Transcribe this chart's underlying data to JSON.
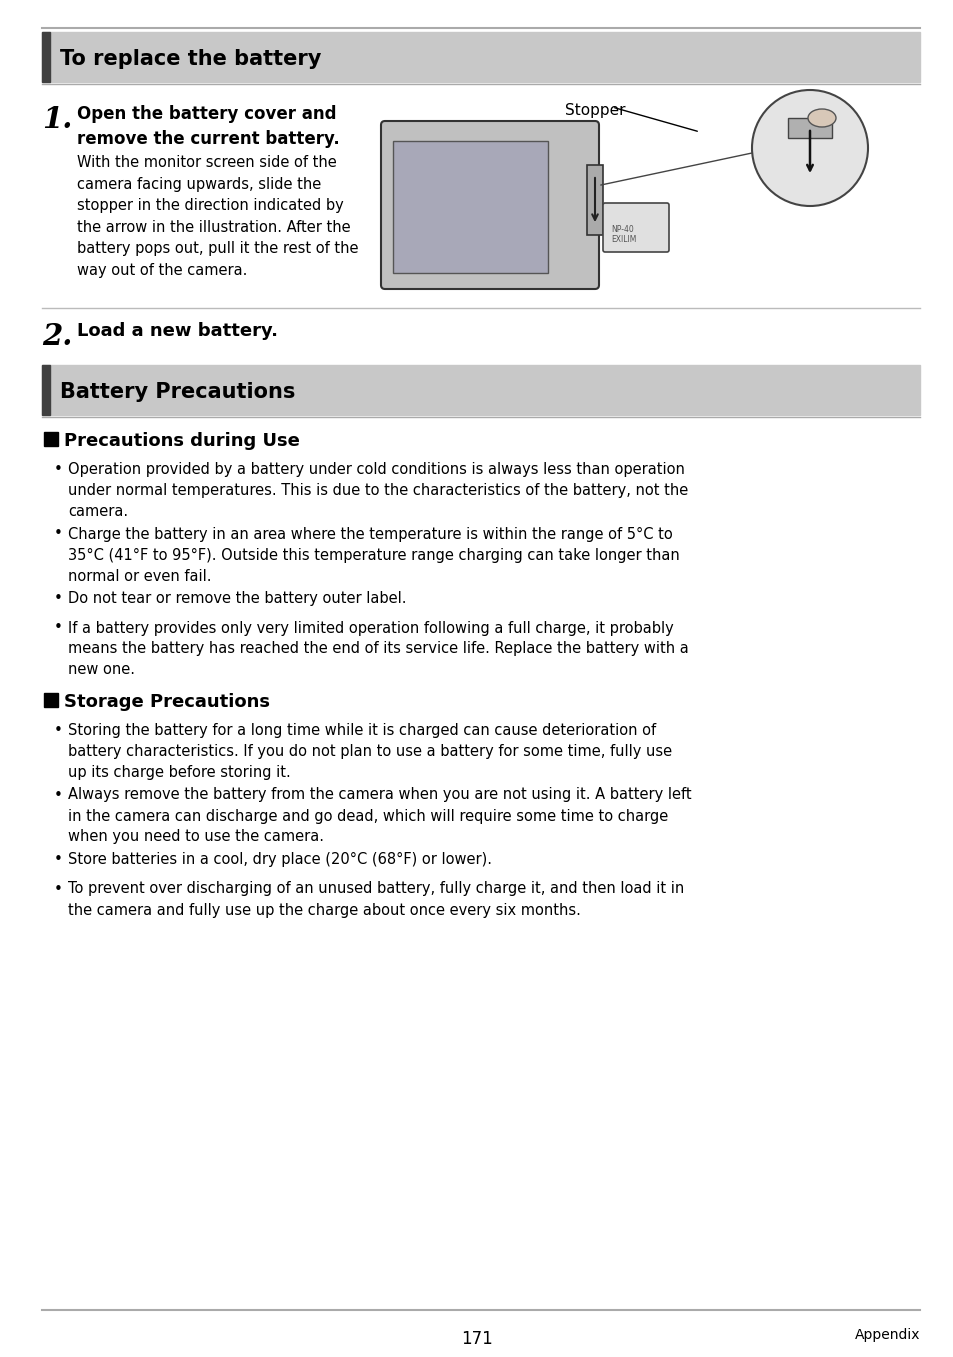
{
  "bg_color": "#ffffff",
  "text_color": "#000000",
  "line_color": "#aaaaaa",
  "accent_color": "#555555",
  "header_bg": "#c8c8c8",
  "page_number": "171",
  "page_label": "Appendix",
  "section1_title": "To replace the battery",
  "section2_title": "Battery Precautions",
  "subsection1_title": "Precautions during Use",
  "subsection2_title": "Storage Precautions",
  "step1_bold": "Open the battery cover and\nremove the current battery.",
  "step1_body": "With the monitor screen side of the\ncamera facing upwards, slide the\nstopper in the direction indicated by\nthe arrow in the illustration. After the\nbattery pops out, pull it the rest of the\nway out of the camera.",
  "stopper_label": "Stopper",
  "step2_bold": "Load a new battery.",
  "bullets_use": [
    "Operation provided by a battery under cold conditions is always less than operation\nunder normal temperatures. This is due to the characteristics of the battery, not the\ncamera.",
    "Charge the battery in an area where the temperature is within the range of 5°C to\n35°C (41°F to 95°F). Outside this temperature range charging can take longer than\nnormal or even fail.",
    "Do not tear or remove the battery outer label.",
    "If a battery provides only very limited operation following a full charge, it probably\nmeans the battery has reached the end of its service life. Replace the battery with a\nnew one."
  ],
  "bullets_storage": [
    "Storing the battery for a long time while it is charged can cause deterioration of\nbattery characteristics. If you do not plan to use a battery for some time, fully use\nup its charge before storing it.",
    "Always remove the battery from the camera when you are not using it. A battery left\nin the camera can discharge and go dead, which will require some time to charge\nwhen you need to use the camera.",
    "Store batteries in a cool, dry place (20°C (68°F) or lower).",
    "To prevent over discharging of an unused battery, fully charge it, and then load it in\nthe camera and fully use up the charge about once every six months."
  ]
}
